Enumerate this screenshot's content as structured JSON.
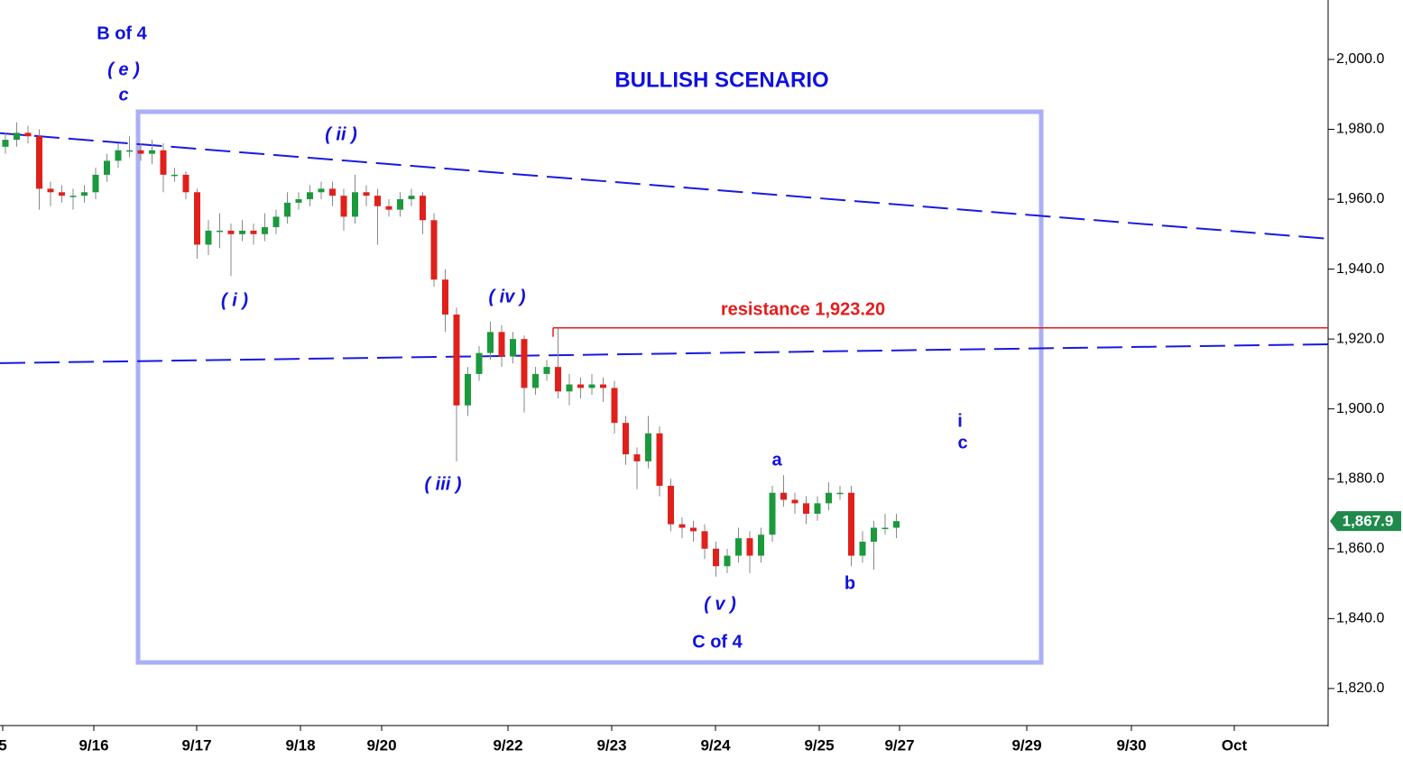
{
  "chart_data": {
    "type": "candlestick",
    "title": "BULLISH SCENARIO",
    "up_color": "#1a9a3c",
    "down_color": "#e0201b",
    "open": [
      1975,
      1977,
      1979,
      1978,
      1963,
      1962,
      1961,
      1961,
      1962,
      1967,
      1971,
      1974,
      1974,
      1973,
      1974,
      1967,
      1967,
      1962,
      1947,
      1951,
      1951,
      1950,
      1951,
      1950,
      1952,
      1955,
      1959,
      1960,
      1962,
      1963,
      1961,
      1955,
      1962,
      1961,
      1958,
      1957,
      1960,
      1961,
      1954,
      1937,
      1927,
      1901,
      1910,
      1916,
      1922,
      1915,
      1920,
      1906,
      1910,
      1912,
      1905,
      1907,
      1906,
      1907,
      1906,
      1896,
      1887,
      1885,
      1893,
      1878,
      1867,
      1866,
      1865,
      1860,
      1855,
      1858,
      1863,
      1858,
      1864,
      1876,
      1874,
      1873,
      1870,
      1873,
      1876,
      1876,
      1858,
      1862,
      1866,
      1866
    ],
    "high": [
      1979,
      1982,
      1981,
      1980,
      1965,
      1964,
      1963,
      1964,
      1969,
      1973,
      1976,
      1978,
      1976,
      1977,
      1976,
      1969,
      1968,
      1963,
      1954,
      1956,
      1953,
      1954,
      1953,
      1956,
      1957,
      1962,
      1962,
      1964,
      1965,
      1965,
      1963,
      1967,
      1964,
      1963,
      1960,
      1962,
      1963,
      1962,
      1956,
      1940,
      1929,
      1912,
      1918,
      1925,
      1924,
      1922,
      1921,
      1912,
      1914,
      1923,
      1910,
      1909,
      1910,
      1909,
      1908,
      1898,
      1889,
      1898,
      1895,
      1880,
      1869,
      1868,
      1867,
      1862,
      1860,
      1866,
      1865,
      1866,
      1878,
      1881,
      1876,
      1875,
      1875,
      1879,
      1878,
      1878,
      1865,
      1868,
      1870,
      1870
    ],
    "low": [
      1973,
      1975,
      1976,
      1957,
      1958,
      1959,
      1957,
      1959,
      1960,
      1965,
      1969,
      1972,
      1971,
      1970,
      1962,
      1965,
      1960,
      1943,
      1944,
      1946,
      1938,
      1948,
      1947,
      1948,
      1950,
      1953,
      1957,
      1958,
      1960,
      1958,
      1951,
      1953,
      1958,
      1947,
      1955,
      1955,
      1958,
      1950,
      1935,
      1922,
      1885,
      1898,
      1908,
      1914,
      1912,
      1913,
      1899,
      1904,
      1908,
      1903,
      1901,
      1903,
      1904,
      1902,
      1893,
      1884,
      1877,
      1883,
      1875,
      1865,
      1863,
      1862,
      1857,
      1852,
      1853,
      1856,
      1853,
      1856,
      1862,
      1872,
      1870,
      1867,
      1868,
      1871,
      1874,
      1855,
      1856,
      1854,
      1864,
      1863
    ],
    "close": [
      1977,
      1979,
      1978,
      1963,
      1962,
      1961,
      1961,
      1962,
      1967,
      1971,
      1974,
      1974,
      1973,
      1974,
      1967,
      1967,
      1962,
      1947,
      1951,
      1951,
      1950,
      1951,
      1950,
      1952,
      1955,
      1959,
      1960,
      1962,
      1963,
      1961,
      1955,
      1962,
      1961,
      1958,
      1957,
      1960,
      1961,
      1954,
      1937,
      1927,
      1901,
      1910,
      1916,
      1922,
      1915,
      1920,
      1906,
      1910,
      1912,
      1905,
      1907,
      1906,
      1907,
      1906,
      1896,
      1887,
      1885,
      1893,
      1878,
      1867,
      1866,
      1865,
      1860,
      1855,
      1858,
      1863,
      1858,
      1864,
      1876,
      1874,
      1873,
      1870,
      1873,
      1876,
      1876,
      1858,
      1862,
      1866,
      1866,
      1867.9
    ],
    "xlim": [
      -0.48,
      117.28
    ],
    "xticks": [
      {
        "value": -0.24,
        "label": "5"
      },
      {
        "value": 7.84,
        "label": "9/16"
      },
      {
        "value": 16.96,
        "label": "9/17"
      },
      {
        "value": 26.16,
        "label": "9/18"
      },
      {
        "value": 33.36,
        "label": "9/20"
      },
      {
        "value": 44.56,
        "label": "9/22"
      },
      {
        "value": 53.76,
        "label": "9/23"
      },
      {
        "value": 62.96,
        "label": "9/24"
      },
      {
        "value": 72.16,
        "label": "9/25"
      },
      {
        "value": 79.28,
        "label": "9/27"
      },
      {
        "value": 90.56,
        "label": "9/29"
      },
      {
        "value": 99.84,
        "label": "9/30"
      },
      {
        "value": 108.96,
        "label": "Oct"
      }
    ],
    "ylim": [
      1809.4,
      2017
    ],
    "yticks": [
      {
        "value": 1820,
        "label": "1,820.0"
      },
      {
        "value": 1840,
        "label": "1,840.0"
      },
      {
        "value": 1860,
        "label": "1,860.0"
      },
      {
        "value": 1880,
        "label": "1,880.0"
      },
      {
        "value": 1900,
        "label": "1,900.0"
      },
      {
        "value": 1920,
        "label": "1,920.0"
      },
      {
        "value": 1940,
        "label": "1,940.0"
      },
      {
        "value": 1960,
        "label": "1,960.0"
      },
      {
        "value": 1980,
        "label": "1,980.0"
      },
      {
        "value": 2000,
        "label": "2,000.0"
      }
    ],
    "last_price": {
      "value": 1867.9,
      "label": "1,867.9",
      "color": "#1f8a4c"
    },
    "trendlines": [
      {
        "x": [
          -0.48,
          117.28
        ],
        "y": [
          1978.9,
          1948.7
        ],
        "color": "#1a1adf"
      },
      {
        "x": [
          -0.48,
          117.28
        ],
        "y": [
          1913.1,
          1918.5
        ],
        "color": "#1a1adf"
      }
    ],
    "resistance": {
      "label": "resistance 1,923.20",
      "value": 1923.2,
      "x_start": 48.56,
      "color": "#e51c1c"
    },
    "annotations": [
      "B of 4",
      "( e )",
      "c",
      "( ii )",
      "( i )",
      "( iv )",
      "( iii )",
      "a",
      "b",
      "( v )",
      "C of 4",
      "i",
      "c"
    ]
  }
}
